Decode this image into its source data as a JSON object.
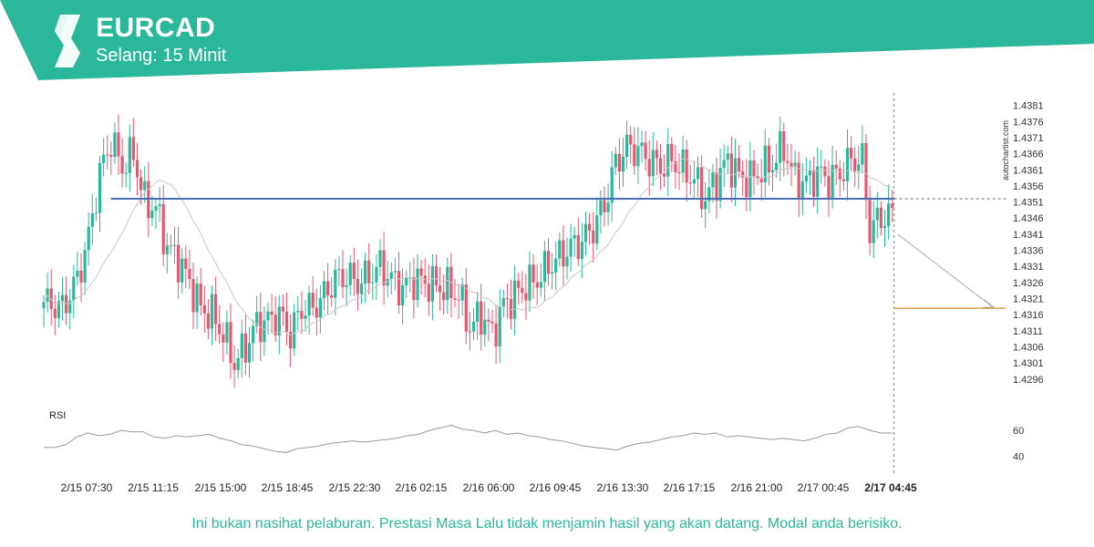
{
  "header": {
    "symbol": "EURCAD",
    "interval": "Selang: 15 Minit",
    "brand_color": "#2bb89a",
    "logo_icon": "autochartist-logo-icon"
  },
  "watermark": "autochartist.com",
  "rsi_label": "RSI",
  "disclaimer": "Ini bukan nasihat pelaburan. Prestasi Masa Lalu tidak menjamin hasil yang akan datang. Modal anda berisiko.",
  "chart_data": {
    "type": "candlestick",
    "symbol": "EURCAD",
    "interval": "15 Minit",
    "ylim": [
      1.4292,
      1.4384
    ],
    "y_ticks": [
      "1.4381",
      "1.4376",
      "1.4371",
      "1.4366",
      "1.4361",
      "1.4356",
      "1.4351",
      "1.4346",
      "1.4341",
      "1.4336",
      "1.4331",
      "1.4326",
      "1.4321",
      "1.4316",
      "1.4311",
      "1.4306",
      "1.4301",
      "1.4296"
    ],
    "x_ticks": [
      "2/15 07:30",
      "2/15 11:15",
      "2/15 15:00",
      "2/15 18:45",
      "2/15 22:30",
      "2/16 02:15",
      "2/16 06:00",
      "2/16 09:45",
      "2/16 13:30",
      "2/16 17:15",
      "2/16 21:00",
      "2/17 00:45",
      "2/17 04:45"
    ],
    "highlighted_x_tick": "2/17 04:45",
    "close_path": [
      {
        "bar": 0,
        "close": 1.432
      },
      {
        "bar": 5,
        "close": 1.4318
      },
      {
        "bar": 9,
        "close": 1.4327
      },
      {
        "bar": 12,
        "close": 1.434
      },
      {
        "bar": 15,
        "close": 1.436
      },
      {
        "bar": 18,
        "close": 1.437
      },
      {
        "bar": 21,
        "close": 1.4362
      },
      {
        "bar": 24,
        "close": 1.4366
      },
      {
        "bar": 27,
        "close": 1.4351
      },
      {
        "bar": 30,
        "close": 1.4349
      },
      {
        "bar": 33,
        "close": 1.4337
      },
      {
        "bar": 36,
        "close": 1.4333
      },
      {
        "bar": 39,
        "close": 1.4326
      },
      {
        "bar": 42,
        "close": 1.4318
      },
      {
        "bar": 45,
        "close": 1.4316
      },
      {
        "bar": 48,
        "close": 1.431
      },
      {
        "bar": 51,
        "close": 1.4301
      },
      {
        "bar": 54,
        "close": 1.4306
      },
      {
        "bar": 57,
        "close": 1.4313
      },
      {
        "bar": 60,
        "close": 1.4314
      },
      {
        "bar": 63,
        "close": 1.4316
      },
      {
        "bar": 66,
        "close": 1.431
      },
      {
        "bar": 69,
        "close": 1.4318
      },
      {
        "bar": 72,
        "close": 1.4318
      },
      {
        "bar": 75,
        "close": 1.4322
      },
      {
        "bar": 78,
        "close": 1.4327
      },
      {
        "bar": 81,
        "close": 1.4328
      },
      {
        "bar": 84,
        "close": 1.4326
      },
      {
        "bar": 87,
        "close": 1.4328
      },
      {
        "bar": 90,
        "close": 1.4331
      },
      {
        "bar": 93,
        "close": 1.4327
      },
      {
        "bar": 96,
        "close": 1.4324
      },
      {
        "bar": 99,
        "close": 1.4327
      },
      {
        "bar": 102,
        "close": 1.4326
      },
      {
        "bar": 105,
        "close": 1.4325
      },
      {
        "bar": 108,
        "close": 1.4324
      },
      {
        "bar": 111,
        "close": 1.4322
      },
      {
        "bar": 114,
        "close": 1.4312
      },
      {
        "bar": 117,
        "close": 1.4316
      },
      {
        "bar": 120,
        "close": 1.431
      },
      {
        "bar": 123,
        "close": 1.4319
      },
      {
        "bar": 126,
        "close": 1.4322
      },
      {
        "bar": 129,
        "close": 1.4325
      },
      {
        "bar": 132,
        "close": 1.4327
      },
      {
        "bar": 135,
        "close": 1.4331
      },
      {
        "bar": 138,
        "close": 1.4334
      },
      {
        "bar": 141,
        "close": 1.4337
      },
      {
        "bar": 144,
        "close": 1.4339
      },
      {
        "bar": 147,
        "close": 1.4343
      },
      {
        "bar": 150,
        "close": 1.435
      },
      {
        "bar": 153,
        "close": 1.4363
      },
      {
        "bar": 156,
        "close": 1.4368
      },
      {
        "bar": 159,
        "close": 1.4367
      },
      {
        "bar": 162,
        "close": 1.4364
      },
      {
        "bar": 165,
        "close": 1.4362
      },
      {
        "bar": 168,
        "close": 1.4364
      },
      {
        "bar": 171,
        "close": 1.4361
      },
      {
        "bar": 174,
        "close": 1.4358
      },
      {
        "bar": 177,
        "close": 1.4352
      },
      {
        "bar": 180,
        "close": 1.4358
      },
      {
        "bar": 183,
        "close": 1.4364
      },
      {
        "bar": 186,
        "close": 1.4359
      },
      {
        "bar": 189,
        "close": 1.4358
      },
      {
        "bar": 192,
        "close": 1.4361
      },
      {
        "bar": 195,
        "close": 1.4363
      },
      {
        "bar": 198,
        "close": 1.4368
      },
      {
        "bar": 201,
        "close": 1.4358
      },
      {
        "bar": 204,
        "close": 1.4357
      },
      {
        "bar": 207,
        "close": 1.436
      },
      {
        "bar": 210,
        "close": 1.4358
      },
      {
        "bar": 213,
        "close": 1.436
      },
      {
        "bar": 216,
        "close": 1.4364
      },
      {
        "bar": 219,
        "close": 1.4364
      },
      {
        "bar": 221,
        "close": 1.4342
      },
      {
        "bar": 222,
        "close": 1.4344
      },
      {
        "bar": 224,
        "close": 1.4346
      },
      {
        "bar": 226,
        "close": 1.4347
      },
      {
        "bar": 227,
        "close": 1.4347
      }
    ],
    "support_resistance_level": 1.4352,
    "target_level": 1.4318,
    "moving_average_color": "#c8c8c8",
    "up_color": "#2bb89a",
    "down_color": "#e8576f",
    "level_line_color": "#4a6fb5",
    "target_line_color": "#d98a2b",
    "rsi": {
      "ticks": [
        60,
        40
      ],
      "ylim": [
        30,
        72
      ],
      "approx_values": [
        47,
        47,
        49,
        55,
        58,
        56,
        57,
        60,
        59,
        59,
        55,
        54,
        56,
        55,
        56,
        57,
        54,
        52,
        49,
        48,
        46,
        44,
        43,
        46,
        47,
        48,
        50,
        51,
        52,
        51,
        52,
        53,
        54,
        56,
        57,
        60,
        62,
        64,
        61,
        60,
        58,
        60,
        57,
        58,
        56,
        55,
        53,
        52,
        50,
        48,
        47,
        46,
        45,
        48,
        50,
        51,
        53,
        55,
        56,
        58,
        57,
        58,
        55,
        56,
        55,
        54,
        53,
        54,
        53,
        52,
        54,
        57,
        58,
        62,
        63,
        60,
        58,
        58
      ],
      "line_color": "#999999"
    }
  }
}
